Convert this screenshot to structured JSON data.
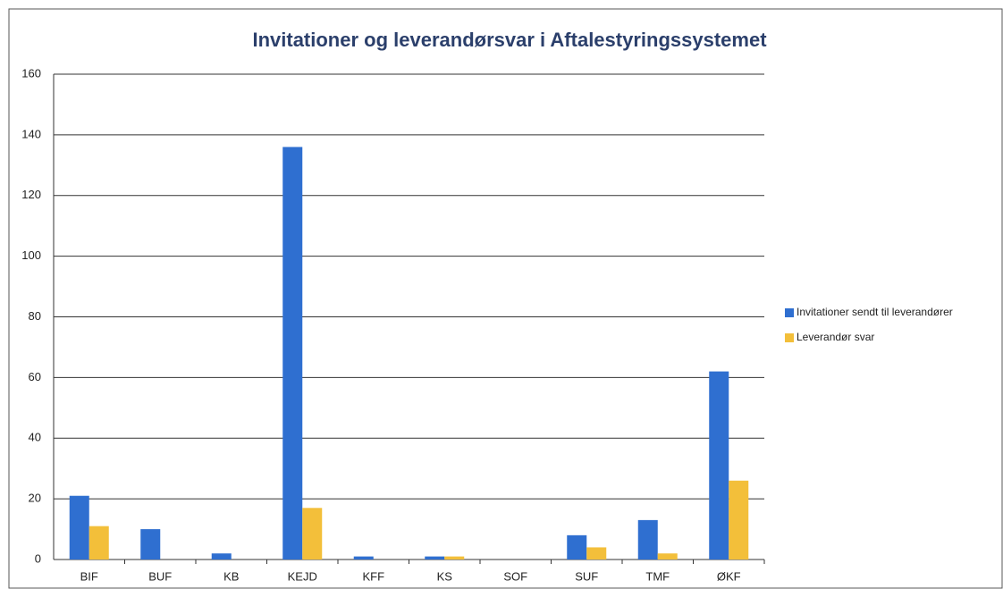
{
  "chart_data": {
    "type": "bar",
    "title": "Invitationer og leverandørsvar i Aftalestyringssystemet",
    "categories": [
      "BIF",
      "BUF",
      "KB",
      "KEJD",
      "KFF",
      "KS",
      "SOF",
      "SUF",
      "TMF",
      "ØKF"
    ],
    "series": [
      {
        "name": "Invitationer sendt til leverandører",
        "color": "#2f6fd0",
        "values": [
          21,
          10,
          2,
          136,
          1,
          1,
          0,
          8,
          13,
          62
        ]
      },
      {
        "name": "Leverandør svar",
        "color": "#f3bf3a",
        "values": [
          11,
          0,
          0,
          17,
          0,
          1,
          0,
          4,
          2,
          26
        ]
      }
    ],
    "ylim": [
      0,
      160
    ],
    "yticks": [
      0,
      20,
      40,
      60,
      80,
      100,
      120,
      140,
      160
    ],
    "grid": true,
    "legend": "right"
  }
}
